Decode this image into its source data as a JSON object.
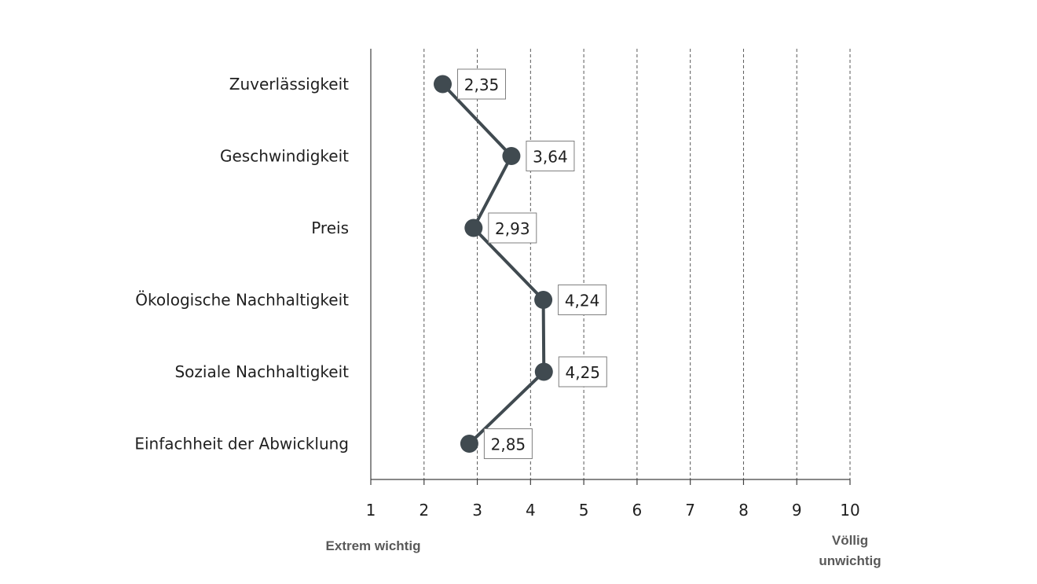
{
  "chart_data": {
    "type": "line",
    "orientation": "horizontal",
    "categories": [
      "Zuverlässigkeit",
      "Geschwindigkeit",
      "Preis",
      "Ökologische Nachhaltigkeit",
      "Soziale Nachhaltigkeit",
      "Einfachheit der Abwicklung"
    ],
    "values": [
      2.35,
      3.64,
      2.93,
      4.24,
      4.25,
      2.85
    ],
    "data_labels": [
      "2,35",
      "3,64",
      "2,93",
      "4,24",
      "4,25",
      "2,85"
    ],
    "xlim": [
      1,
      10
    ],
    "x_ticks": [
      "1",
      "2",
      "3",
      "4",
      "5",
      "6",
      "7",
      "8",
      "9",
      "10"
    ],
    "grid": "vertical dashed",
    "axis_end_labels": {
      "left": "Extrem wichtig",
      "right_line1": "Völlig",
      "right_line2": "unwichtig"
    },
    "colors": {
      "series": "#404a50",
      "grid": "#595959",
      "label_border": "#7f7f7f"
    }
  }
}
